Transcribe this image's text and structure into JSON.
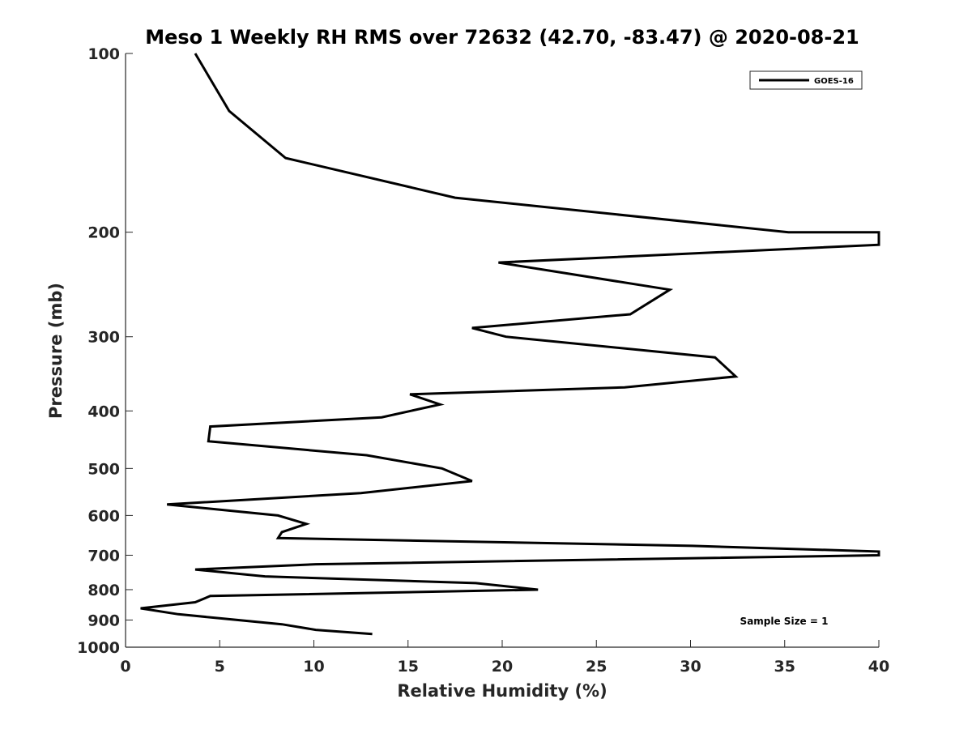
{
  "chart_data": {
    "type": "line",
    "title": "Meso 1 Weekly RH RMS over 72632 (42.70, -83.47) @ 2020-08-21",
    "xlabel": "Relative Humidity (%)",
    "ylabel": "Pressure (mb)",
    "xlim": [
      0,
      40
    ],
    "ylim": [
      100,
      1000
    ],
    "y_scale": "log",
    "y_reversed": true,
    "grid": false,
    "legend_position": "top-right",
    "x_ticks": [
      0,
      5,
      10,
      15,
      20,
      25,
      30,
      35,
      40
    ],
    "y_ticks": [
      100,
      200,
      300,
      400,
      500,
      600,
      700,
      800,
      900,
      1000
    ],
    "annotation": "Sample Size = 1",
    "series": [
      {
        "name": "GOES-16",
        "color": "#000000",
        "points": [
          [
            3.7,
            100
          ],
          [
            5.5,
            125
          ],
          [
            8.5,
            150
          ],
          [
            17.5,
            175
          ],
          [
            35.2,
            200
          ],
          [
            40,
            200
          ],
          [
            40,
            210
          ],
          [
            19.8,
            225
          ],
          [
            28.9,
            250
          ],
          [
            26.8,
            275
          ],
          [
            18.4,
            290
          ],
          [
            20.2,
            300
          ],
          [
            31.3,
            325
          ],
          [
            32.4,
            350
          ],
          [
            26.5,
            365
          ],
          [
            15.1,
            375
          ],
          [
            16.7,
            390
          ],
          [
            13.6,
            410
          ],
          [
            4.5,
            425
          ],
          [
            4.4,
            450
          ],
          [
            12.8,
            475
          ],
          [
            16.8,
            500
          ],
          [
            18.4,
            525
          ],
          [
            12.5,
            550
          ],
          [
            2.2,
            575
          ],
          [
            8.1,
            600
          ],
          [
            9.6,
            620
          ],
          [
            8.3,
            640
          ],
          [
            8.1,
            655
          ],
          [
            30.1,
            675
          ],
          [
            40,
            690
          ],
          [
            40,
            700
          ],
          [
            10.1,
            725
          ],
          [
            3.7,
            740
          ],
          [
            7.4,
            760
          ],
          [
            18.6,
            780
          ],
          [
            21.9,
            800
          ],
          [
            4.5,
            820
          ],
          [
            3.7,
            840
          ],
          [
            0.8,
            860
          ],
          [
            2.8,
            880
          ],
          [
            8.3,
            915
          ],
          [
            10.1,
            935
          ],
          [
            13.1,
            950
          ]
        ]
      }
    ]
  }
}
